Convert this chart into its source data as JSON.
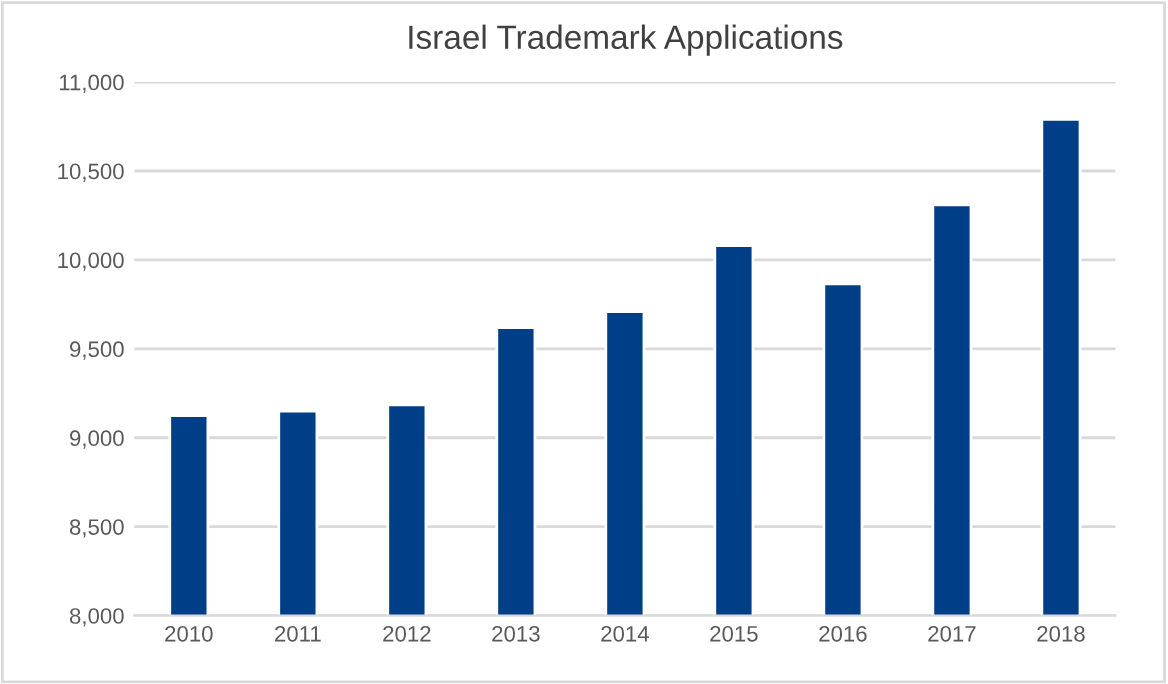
{
  "chart_data": {
    "type": "bar",
    "title": "Israel Trademark Applications",
    "categories": [
      "2010",
      "2011",
      "2012",
      "2013",
      "2014",
      "2015",
      "2016",
      "2017",
      "2018"
    ],
    "values": [
      9125,
      9150,
      9185,
      9620,
      9710,
      10080,
      9865,
      10310,
      10790
    ],
    "color": "#003f87",
    "ylim": [
      8000,
      11000
    ],
    "yticks": [
      {
        "value": 8000,
        "label": "8,000"
      },
      {
        "value": 8500,
        "label": "8,500"
      },
      {
        "value": 9000,
        "label": "9,000"
      },
      {
        "value": 9500,
        "label": "9,500"
      },
      {
        "value": 10000,
        "label": "10,000"
      },
      {
        "value": 10500,
        "label": "10,500"
      },
      {
        "value": 11000,
        "label": "11,000"
      }
    ],
    "grid": "y"
  }
}
